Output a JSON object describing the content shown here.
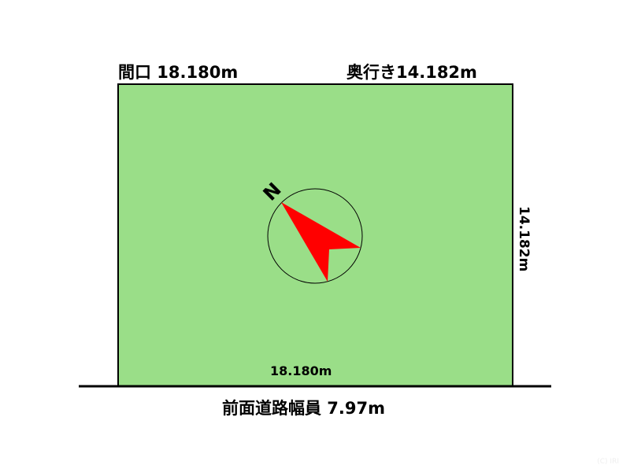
{
  "labels": {
    "frontage": "間口 18.180m",
    "depth": "奥行き14.182m",
    "right_side": "14.182m",
    "bottom_side": "18.180m",
    "road_width": "前面道路幅員 7.97m",
    "north": "N",
    "copyright": "(C) IRI"
  },
  "colors": {
    "lot_fill": "#9ade88",
    "arrow": "#ff0000"
  }
}
